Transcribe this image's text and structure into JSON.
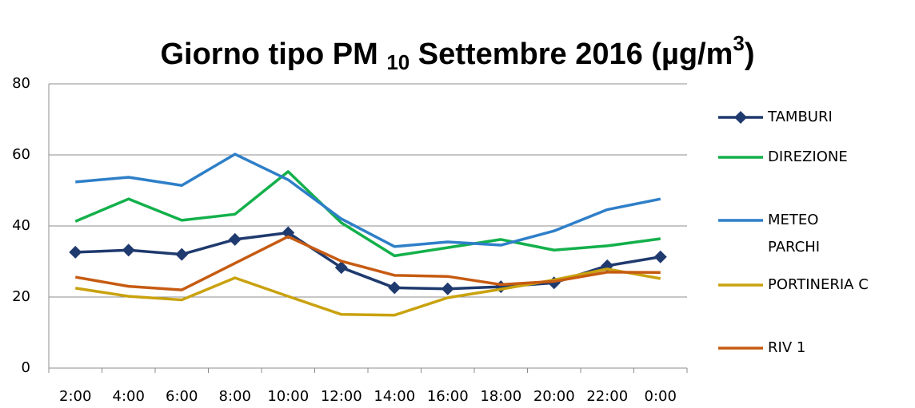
{
  "chart_data": {
    "type": "line",
    "title_parts": [
      "Giorno tipo PM ",
      "10",
      " Settembre 2016 (µg/m",
      "3",
      ")"
    ],
    "categories": [
      "2:00",
      "4:00",
      "6:00",
      "8:00",
      "10:00",
      "12:00",
      "14:00",
      "16:00",
      "18:00",
      "20:00",
      "22:00",
      "0:00"
    ],
    "series": [
      {
        "name": "TAMBURI",
        "color": "#1f3a6e",
        "marker": "diamond",
        "values": [
          32.6,
          33.2,
          32,
          36.2,
          38.1,
          28.3,
          22.6,
          22.3,
          22.9,
          24,
          28.8,
          31.3
        ]
      },
      {
        "name": "DIREZIONE",
        "color": "#13b04b",
        "values": [
          41.3,
          47.6,
          41.6,
          43.3,
          55.3,
          40.9,
          31.6,
          33.9,
          36.2,
          33.2,
          34.4,
          36.4
        ]
      },
      {
        "name": "METEO PARCHI",
        "color": "#2e7fc8",
        "values": [
          52.4,
          53.7,
          51.4,
          60.2,
          53,
          42,
          34.2,
          35.5,
          34.6,
          38.6,
          44.6,
          47.6
        ]
      },
      {
        "name": "PORTINERIA C",
        "color": "#c9a20f",
        "values": [
          22.5,
          20.2,
          19.2,
          25.4,
          20.2,
          15.1,
          14.9,
          19.8,
          22.2,
          24.8,
          27.9,
          25.2
        ]
      },
      {
        "name": "RIV 1",
        "color": "#c65b12",
        "values": [
          25.6,
          23,
          22,
          29.5,
          37,
          30.1,
          26.1,
          25.8,
          23.5,
          24.4,
          27,
          26.9
        ]
      }
    ],
    "ylim": [
      0,
      80
    ],
    "yticks": [
      0,
      20,
      40,
      60,
      80
    ],
    "grid": true,
    "legend": "right"
  }
}
